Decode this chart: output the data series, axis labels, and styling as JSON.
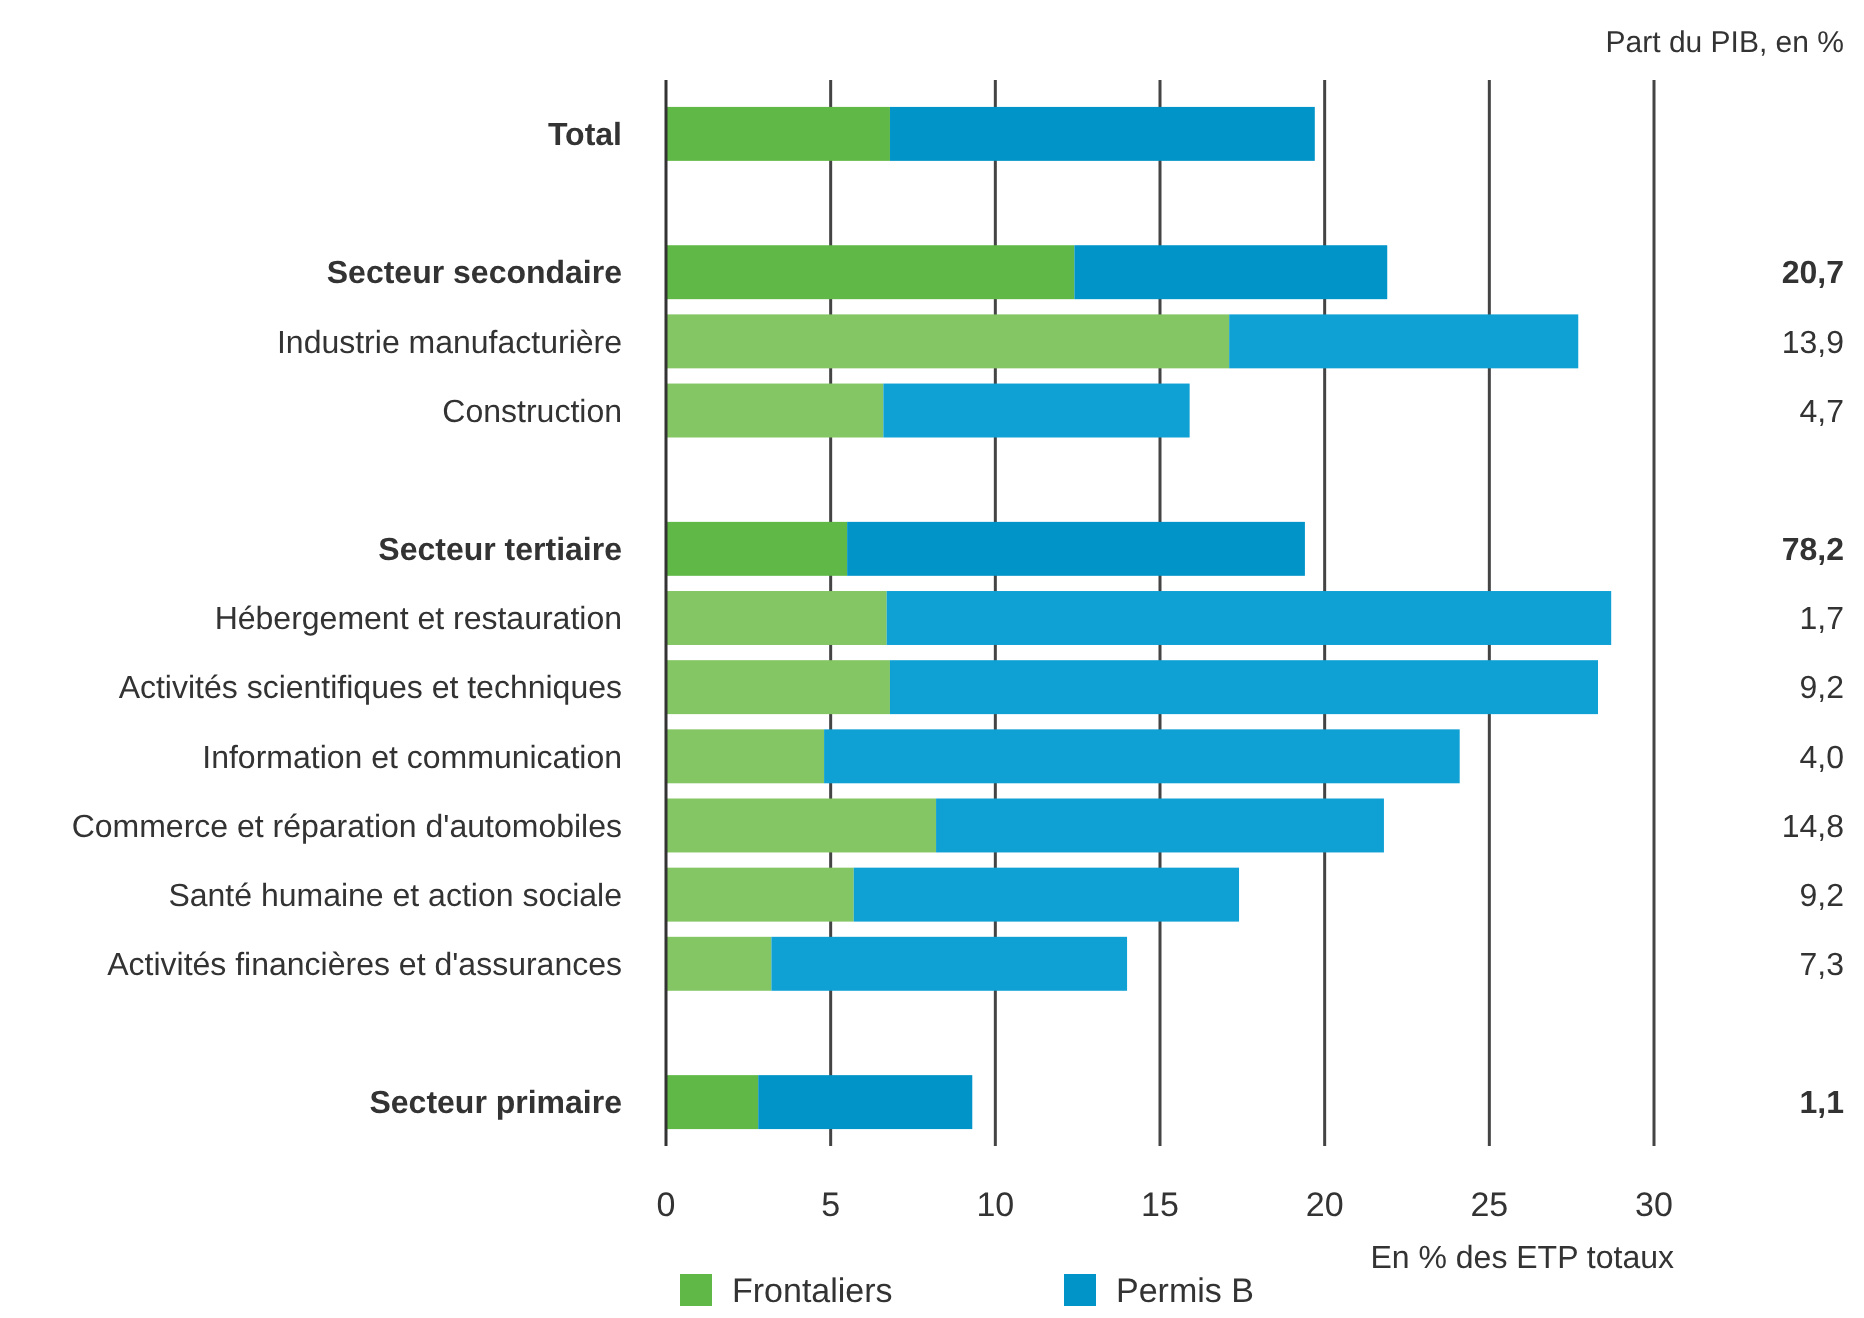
{
  "chart_data": {
    "type": "bar",
    "orientation": "horizontal",
    "stacked": true,
    "categories": [
      "Total",
      null,
      "Secteur secondaire",
      "Industrie manufacturière",
      "Construction",
      null,
      "Secteur tertiaire",
      "Hébergement et restauration",
      "Activités scientifiques et techniques",
      "Information et communication",
      "Commerce et réparation d'automobiles",
      "Santé humaine et action sociale",
      "Activités financières et d'assurances",
      null,
      "Secteur primaire"
    ],
    "series": [
      {
        "name": "Frontaliers",
        "color": "#84c564",
        "colors": [
          "#60b946",
          null,
          "#60b946",
          "#84c564",
          "#84c564",
          null,
          "#60b946",
          "#84c564",
          "#84c564",
          "#84c564",
          "#84c564",
          "#84c564",
          "#84c564",
          null,
          "#60b946"
        ],
        "values": [
          6.8,
          null,
          12.4,
          17.1,
          6.6,
          null,
          5.5,
          6.7,
          6.8,
          4.8,
          8.2,
          5.7,
          3.2,
          null,
          2.8
        ]
      },
      {
        "name": "Permis B",
        "color": "#10a1d4",
        "colors": [
          "#0094c8",
          null,
          "#0094c8",
          "#10a1d4",
          "#10a1d4",
          null,
          "#0094c8",
          "#10a1d4",
          "#10a1d4",
          "#10a1d4",
          "#10a1d4",
          "#10a1d4",
          "#10a1d4",
          null,
          "#0094c8"
        ],
        "values": [
          12.9,
          null,
          9.5,
          10.6,
          9.3,
          null,
          13.9,
          22.0,
          21.5,
          19.3,
          13.6,
          11.7,
          10.8,
          null,
          6.5
        ]
      }
    ],
    "xlim": [
      0,
      30
    ],
    "xticks": [
      0,
      5,
      10,
      15,
      20,
      25,
      30
    ],
    "xlabel": "En % des ETP totaux",
    "grid": "x",
    "legend": "bottom left",
    "annotations": [
      "Part du PIB, en %",
      "20,7",
      "13,9",
      "4,7",
      "78,2",
      "1,7",
      "9,2",
      "4,0",
      "14,8",
      "9,2",
      "7,3",
      "1,1"
    ]
  }
}
